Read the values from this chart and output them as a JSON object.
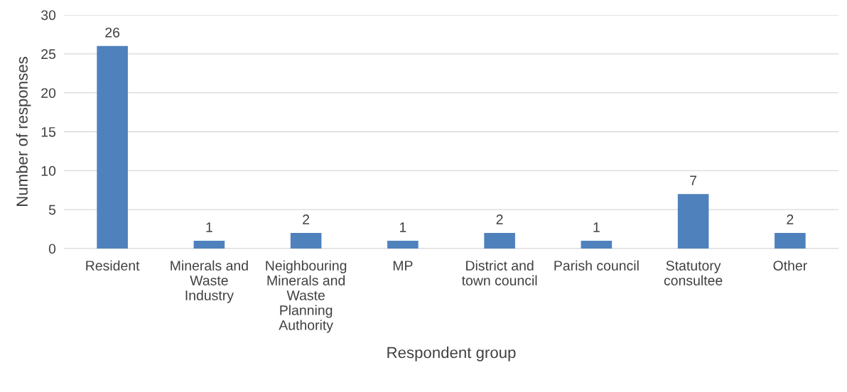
{
  "chart_data": {
    "type": "bar",
    "xlabel": "Respondent group",
    "ylabel": "Number of responses",
    "categories": [
      "Resident",
      "Minerals and\nWaste\nIndustry",
      "Neighbouring\nMinerals and\nWaste\nPlanning\nAuthority",
      "MP",
      "District and\ntown council",
      "Parish council",
      "Statutory\nconsultee",
      "Other"
    ],
    "values": [
      26,
      1,
      2,
      1,
      2,
      1,
      7,
      2
    ],
    "color": "#4f81bd",
    "ylim": [
      0,
      30
    ],
    "yticks": [
      0,
      5,
      10,
      15,
      20,
      25,
      30
    ],
    "grid": "y",
    "data_labels": true
  }
}
